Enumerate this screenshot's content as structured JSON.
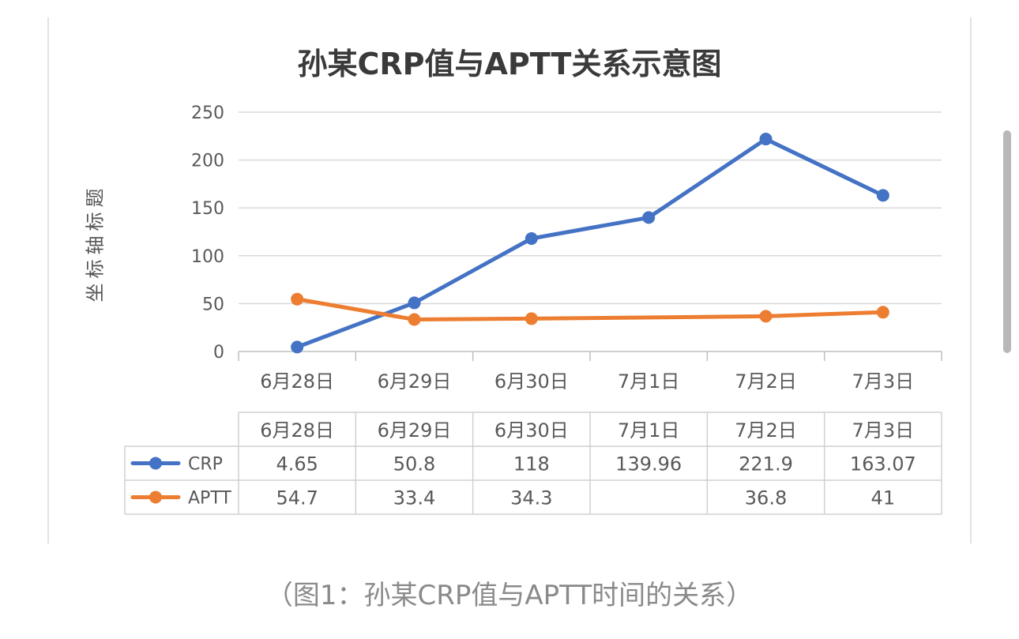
{
  "caption": "（图1：孙某CRP值与APTT时间的关系）",
  "colors": {
    "crp": "#4472C4",
    "aptt": "#ED7D31",
    "grid": "#d9d9d9",
    "text": "#595959"
  },
  "chart_data": {
    "type": "line",
    "title": "孙某CRP值与APTT关系示意图",
    "xlabel": "",
    "ylabel": "坐标轴标题",
    "ylim": [
      0,
      250
    ],
    "yticks": [
      0,
      50,
      100,
      150,
      200,
      250
    ],
    "grid": true,
    "legend": "data-table",
    "categories": [
      "6月28日",
      "6月29日",
      "6月30日",
      "7月1日",
      "7月2日",
      "7月3日"
    ],
    "series": [
      {
        "name": "CRP",
        "color": "#4472C4",
        "values": [
          4.65,
          50.8,
          118,
          139.96,
          221.9,
          163.07
        ],
        "table_values": [
          "4.65",
          "50.8",
          "118",
          "139.96",
          "221.9",
          "163.07"
        ]
      },
      {
        "name": "APTT",
        "color": "#ED7D31",
        "values": [
          54.7,
          33.4,
          34.3,
          null,
          36.8,
          41
        ],
        "table_values": [
          "54.7",
          "33.4",
          "34.3",
          "",
          "36.8",
          "41"
        ]
      }
    ]
  }
}
